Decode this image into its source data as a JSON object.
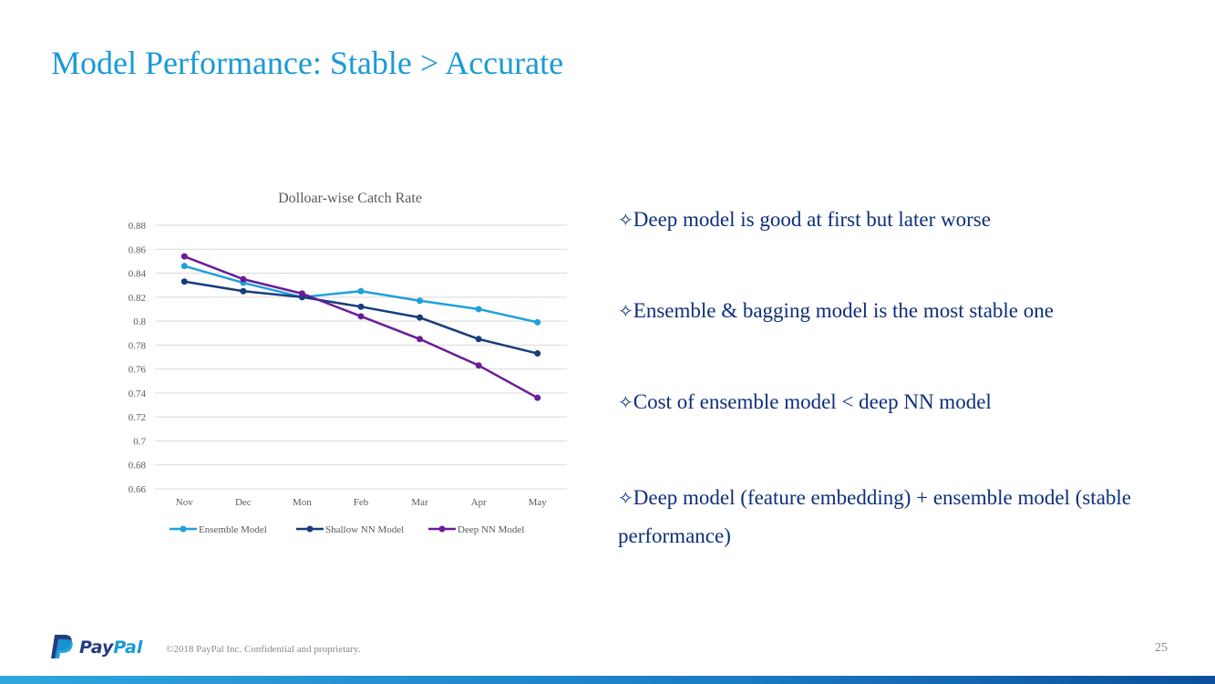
{
  "slide": {
    "title": "Model Performance: Stable > Accurate",
    "page_number": "25",
    "copyright": "©2018 PayPal Inc. Confidential and proprietary.",
    "logo_text": "PayPal"
  },
  "bullets": [
    {
      "text": "Deep model is good at first but later  worse"
    },
    {
      "text": "Ensemble & bagging model is the most stable one"
    },
    {
      "text": "Cost of ensemble model < deep NN model"
    },
    {
      "text": "Deep model (feature embedding) + ensemble model (stable performance)"
    }
  ],
  "colors": {
    "title": "#1a9ad6",
    "bullet_text": "#0d2f7a",
    "ensemble": "#1ea0db",
    "shallow": "#173d7c",
    "deep": "#6a1b9a",
    "grid": "#d9d9d9"
  },
  "chart_data": {
    "type": "line",
    "title": "Dolloar-wise Catch Rate",
    "categories": [
      "Nov",
      "Dec",
      "Mon",
      "Feb",
      "Mar",
      "Apr",
      "May"
    ],
    "ylim": [
      0.66,
      0.88
    ],
    "yticks": [
      "0.66",
      "0.68",
      "0.7",
      "0.72",
      "0.74",
      "0.76",
      "0.78",
      "0.8",
      "0.82",
      "0.84",
      "0.86",
      "0.88"
    ],
    "grid": true,
    "legend_position": "bottom",
    "series": [
      {
        "name": "Ensemble Model",
        "color": "#1ea0db",
        "values": [
          0.846,
          0.832,
          0.82,
          0.825,
          0.817,
          0.81,
          0.799
        ]
      },
      {
        "name": "Shallow NN Model",
        "color": "#173d7c",
        "values": [
          0.833,
          0.825,
          0.82,
          0.812,
          0.803,
          0.785,
          0.773
        ]
      },
      {
        "name": "Deep NN Model",
        "color": "#6a1b9a",
        "values": [
          0.854,
          0.835,
          0.823,
          0.804,
          0.785,
          0.763,
          0.736
        ]
      }
    ]
  }
}
